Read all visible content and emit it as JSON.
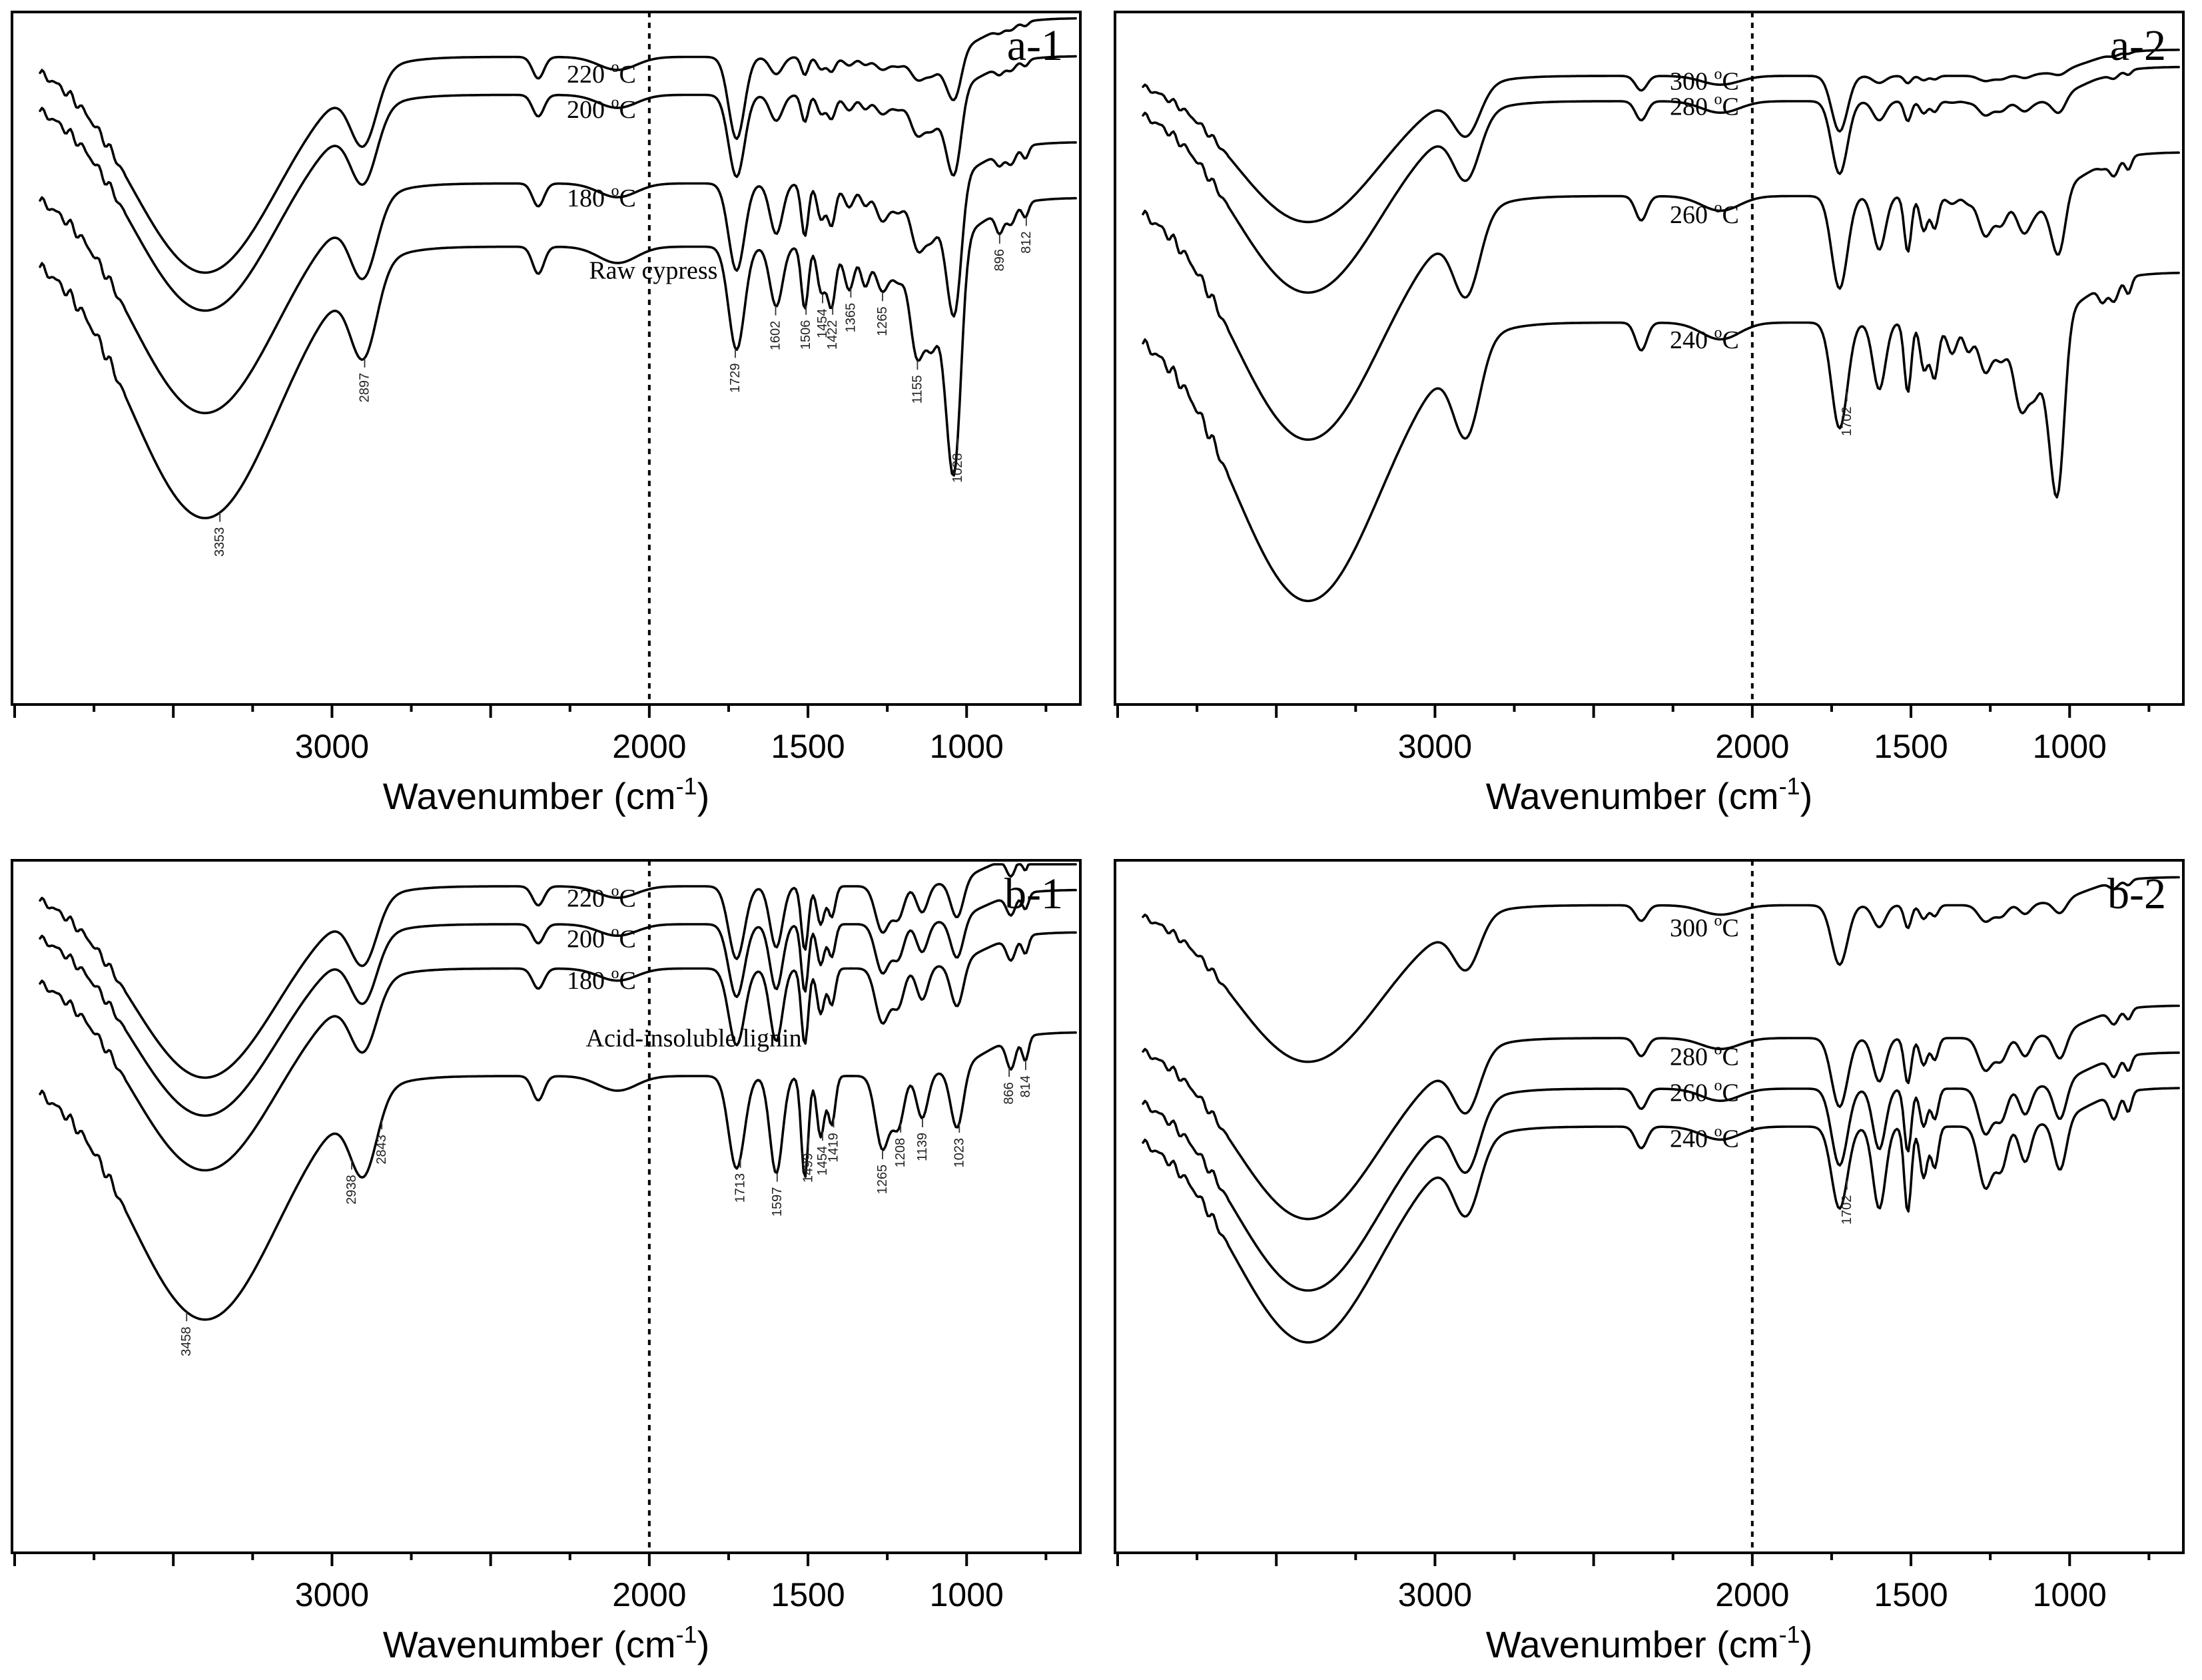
{
  "figure": {
    "axis_unit_base": "Wavenumber (cm",
    "axis_unit_exp": "-1",
    "axis_unit_close": ")",
    "degree": "o",
    "celsius": "C"
  },
  "chart_data": [
    {
      "panel": "a-1",
      "type": "line",
      "xlabel": "Wavenumber (cm-1)",
      "ylabel": "",
      "xlim": [
        4000,
        650
      ],
      "xticks": [
        3000,
        2000,
        1500,
        1000
      ],
      "marker_line_x": 2000,
      "series": [
        {
          "name": "220 °C",
          "label_main": "220 ",
          "label_unit": "C",
          "label_x": 2260,
          "label_off": 38,
          "offset": 0.05,
          "scale": 0.62,
          "cellulose": 0.25,
          "lignin": 0.2
        },
        {
          "name": "200 °C",
          "label_main": "200 ",
          "label_unit": "C",
          "label_x": 2260,
          "label_off": 34,
          "offset": 0.11,
          "scale": 0.62,
          "cellulose": 0.45,
          "lignin": 0.3
        },
        {
          "name": "180 °C",
          "label_main": "180 ",
          "label_unit": "C",
          "label_x": 2260,
          "label_off": 34,
          "offset": 0.25,
          "scale": 0.66,
          "cellulose": 0.65,
          "lignin": 0.55
        },
        {
          "name": "Raw cypress",
          "label_main": "Raw cypress",
          "label_unit": "",
          "label_x": 2190,
          "label_off": 40,
          "offset": 0.35,
          "scale": 0.78,
          "cellulose": 1.0,
          "lignin": 0.55
        }
      ],
      "peak_labels": [
        "3353",
        "2897",
        "1729",
        "1602",
        "1506",
        "1454",
        "1422",
        "1365",
        "1265",
        "1155",
        "1028",
        "896",
        "812"
      ]
    },
    {
      "panel": "a-2",
      "type": "line",
      "xlabel": "Wavenumber (cm-1)",
      "ylabel": "",
      "xlim": [
        4000,
        650
      ],
      "xticks": [
        3000,
        2000,
        1500,
        1000
      ],
      "marker_line_x": 2000,
      "series": [
        {
          "name": "300 °C",
          "label_main": "300 ",
          "label_unit": "C",
          "label_x": 2260,
          "label_off": 20,
          "offset": 0.08,
          "scale": 0.42,
          "cellulose": 0.0,
          "lignin": 0.12
        },
        {
          "name": "280 °C",
          "label_main": "280 ",
          "label_unit": "C",
          "label_x": 2260,
          "label_off": 20,
          "offset": 0.12,
          "scale": 0.55,
          "cellulose": 0.05,
          "lignin": 0.25
        },
        {
          "name": "260 °C",
          "label_main": "260 ",
          "label_unit": "C",
          "label_x": 2260,
          "label_off": 40,
          "offset": 0.27,
          "scale": 0.7,
          "cellulose": 0.2,
          "lignin": 0.55
        },
        {
          "name": "240 °C",
          "label_main": "240 ",
          "label_unit": "C",
          "label_x": 2260,
          "label_off": 38,
          "offset": 0.47,
          "scale": 0.8,
          "cellulose": 0.7,
          "lignin": 0.6
        }
      ],
      "peak_labels": [
        "1702"
      ]
    },
    {
      "panel": "b-1",
      "type": "line",
      "xlabel": "Wavenumber (cm-1)",
      "ylabel": "",
      "xlim": [
        4000,
        650
      ],
      "xticks": [
        3000,
        2000,
        1500,
        1000
      ],
      "marker_line_x": 2000,
      "series": [
        {
          "name": "220 °C",
          "label_main": "220 ",
          "label_unit": "C",
          "label_x": 2260,
          "label_off": 30,
          "offset": 0.02,
          "scale": 0.55,
          "cellulose": 0.0,
          "lignin": 0.8
        },
        {
          "name": "200 °C",
          "label_main": "200 ",
          "label_unit": "C",
          "label_x": 2260,
          "label_off": 34,
          "offset": 0.08,
          "scale": 0.55,
          "cellulose": 0.0,
          "lignin": 0.85
        },
        {
          "name": "180 °C",
          "label_main": "180 ",
          "label_unit": "C",
          "label_x": 2260,
          "label_off": 30,
          "offset": 0.15,
          "scale": 0.58,
          "cellulose": 0.0,
          "lignin": 0.9
        },
        {
          "name": "Acid-insoluble lignin",
          "label_main": "Acid-insoluble lignin",
          "label_unit": "",
          "label_x": 2200,
          "label_off": -50,
          "offset": 0.32,
          "scale": 0.7,
          "cellulose": 0.0,
          "lignin": 1.0
        }
      ],
      "peak_labels": [
        "3458",
        "2938",
        "2843",
        "1713",
        "1597",
        "1499",
        "1454",
        "1419",
        "1265",
        "1208",
        "1139",
        "1023",
        "866",
        "814"
      ]
    },
    {
      "panel": "b-2",
      "type": "line",
      "xlabel": "Wavenumber (cm-1)",
      "ylabel": "",
      "xlim": [
        4000,
        650
      ],
      "xticks": [
        3000,
        2000,
        1500,
        1000
      ],
      "marker_line_x": 2000,
      "series": [
        {
          "name": "300 °C",
          "label_main": "300 ",
          "label_unit": "C",
          "label_x": 2260,
          "label_off": 46,
          "offset": 0.05,
          "scale": 0.45,
          "cellulose": 0.0,
          "lignin": 0.35
        },
        {
          "name": "280 °C",
          "label_main": "280 ",
          "label_unit": "C",
          "label_x": 2260,
          "label_off": 40,
          "offset": 0.26,
          "scale": 0.52,
          "cellulose": 0.0,
          "lignin": 0.6
        },
        {
          "name": "260 °C",
          "label_main": "260 ",
          "label_unit": "C",
          "label_x": 2260,
          "label_off": 18,
          "offset": 0.34,
          "scale": 0.58,
          "cellulose": 0.0,
          "lignin": 0.75
        },
        {
          "name": "240 °C",
          "label_main": "240 ",
          "label_unit": "C",
          "label_x": 2260,
          "label_off": 30,
          "offset": 0.4,
          "scale": 0.62,
          "cellulose": 0.0,
          "lignin": 0.95
        }
      ],
      "peak_labels": [
        "1702"
      ]
    }
  ]
}
